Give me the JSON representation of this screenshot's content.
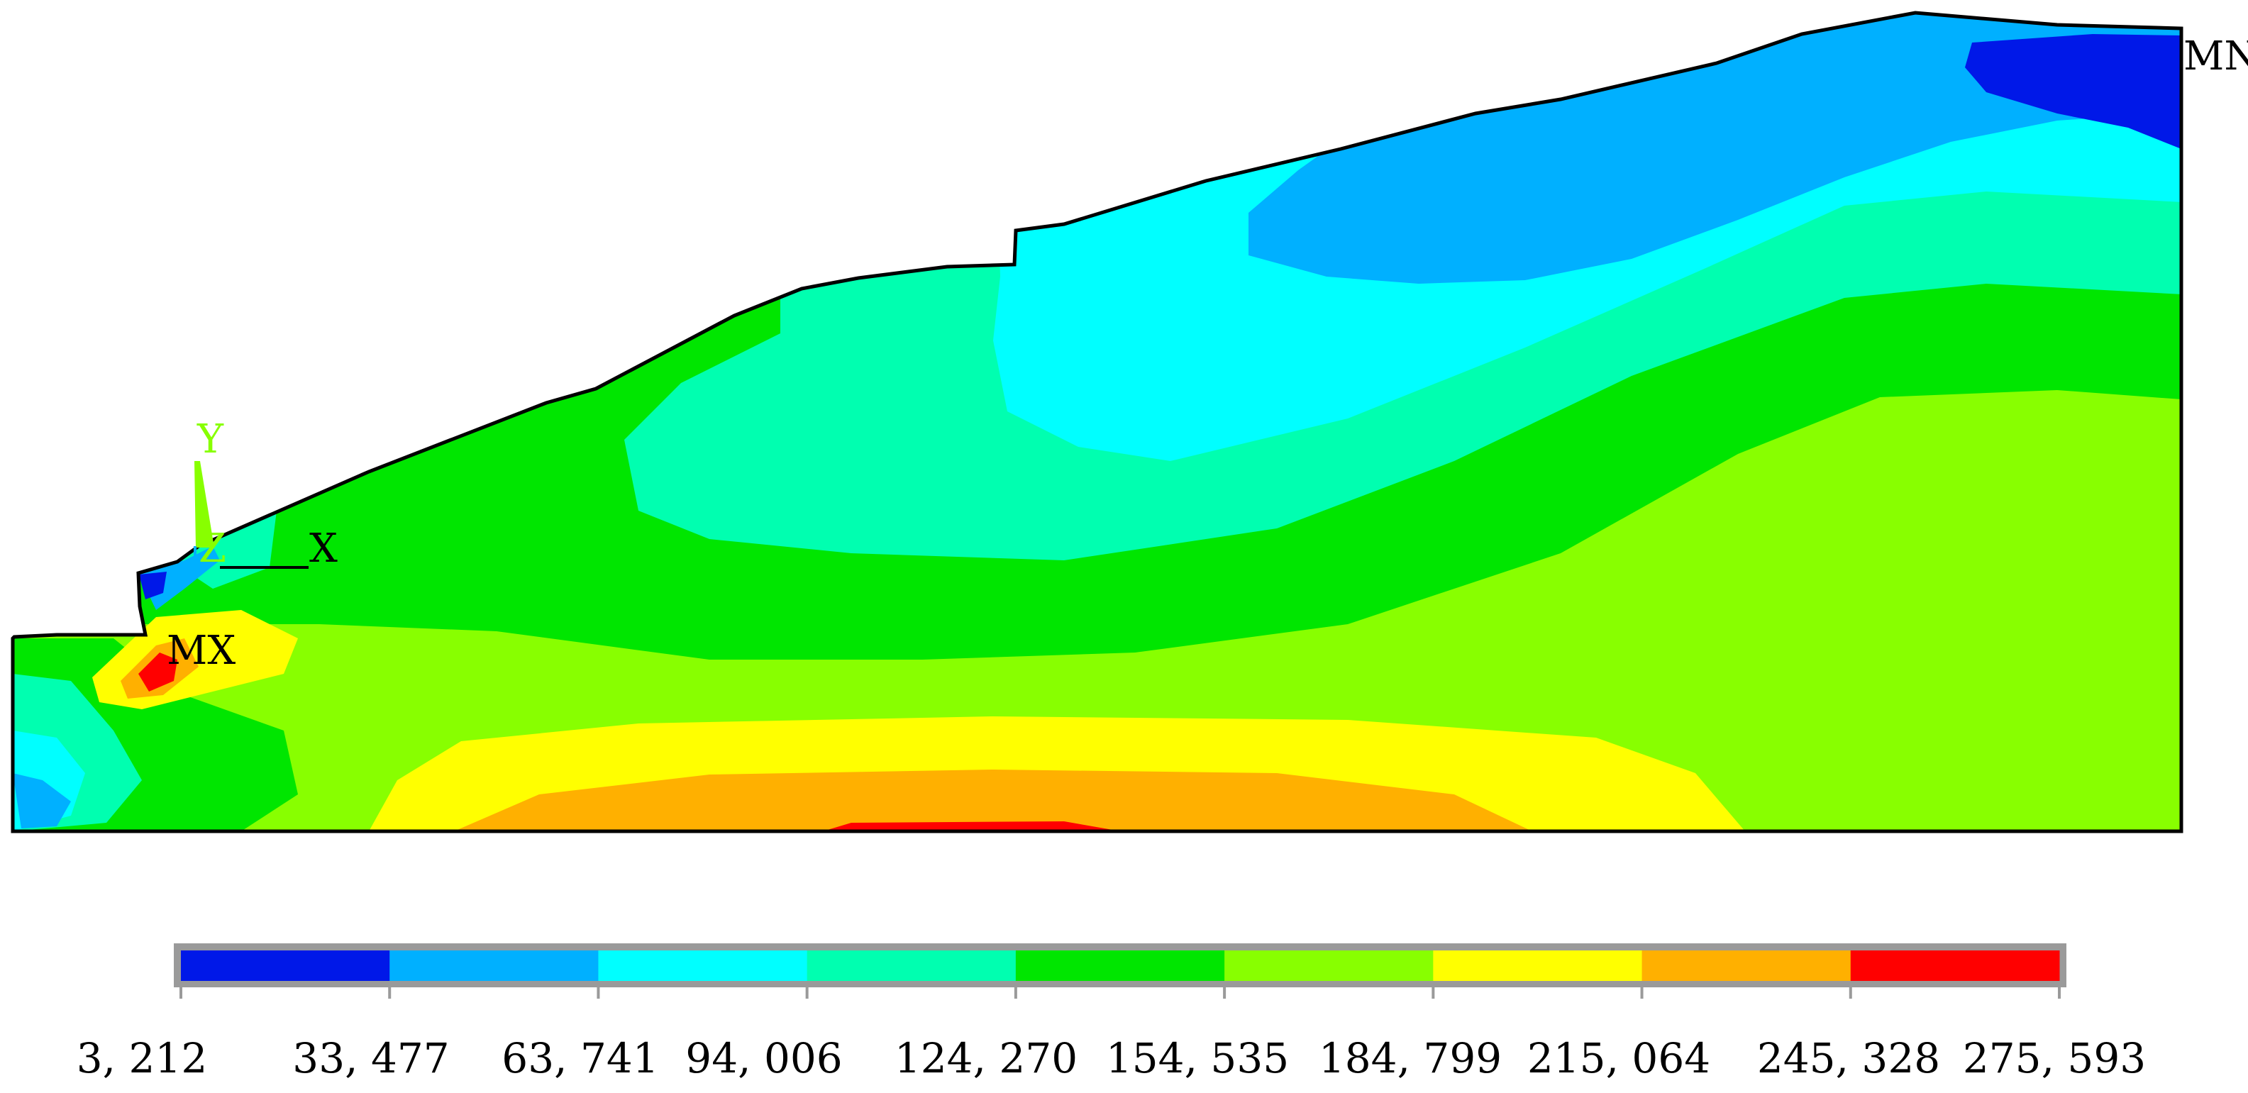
{
  "markers": {
    "max": "MX",
    "min": "MN"
  },
  "axes": {
    "x": "X",
    "y": "Y",
    "z": "Z"
  },
  "legend": {
    "ticks": [
      "3, 212",
      "33, 477",
      "63, 741",
      "94, 006",
      "124, 270",
      "154, 535",
      "184, 799",
      "215, 064",
      "245, 328",
      "275, 593"
    ],
    "colors": [
      "#0018e8",
      "#00b0ff",
      "#00ffff",
      "#00ffb0",
      "#00e600",
      "#88ff00",
      "#ffff00",
      "#ffb000",
      "#ff0000"
    ]
  },
  "colors": {
    "band1": "#0018e8",
    "band2": "#00b0ff",
    "band3": "#00ffff",
    "band4": "#00ffb0",
    "band5": "#00e600",
    "band6": "#88ff00",
    "band7": "#ffff00",
    "band8": "#ffb000",
    "band9": "#ff0000",
    "triad": "#88ff00"
  }
}
